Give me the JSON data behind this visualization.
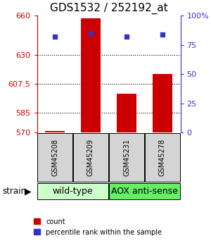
{
  "title": "GDS1532 / 252192_at",
  "samples": [
    "GSM45208",
    "GSM45209",
    "GSM45231",
    "GSM45278"
  ],
  "counts": [
    571,
    658,
    600,
    615
  ],
  "percentile_ranks": [
    82,
    85,
    82,
    84
  ],
  "y_min": 570,
  "y_max": 660,
  "y_ticks_left": [
    570,
    585,
    607.5,
    630,
    660
  ],
  "y_ticks_right": [
    0,
    25,
    50,
    75,
    100
  ],
  "percentile_min": 0,
  "percentile_max": 100,
  "bar_color": "#cc0000",
  "dot_color": "#3333cc",
  "bar_width": 0.55,
  "title_fontsize": 11,
  "tick_fontsize": 8,
  "group_fontsize": 9,
  "sample_fontsize": 7,
  "legend_fontsize": 7,
  "group_spans": [
    {
      "label": "wild-type",
      "start": 0,
      "end": 1,
      "color": "#ccffcc"
    },
    {
      "label": "AOX anti-sense",
      "start": 2,
      "end": 3,
      "color": "#66ee66"
    }
  ],
  "legend_count": "count",
  "legend_percentile": "percentile rank within the sample"
}
